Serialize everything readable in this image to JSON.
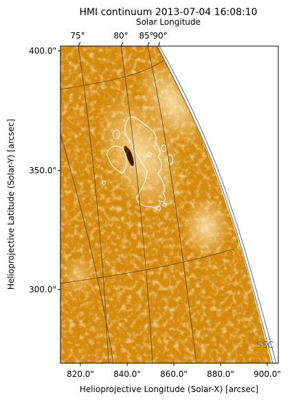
{
  "chart_data": {
    "type": "heatmap",
    "title": "HMI continuum 2013-07-04 16:08:10",
    "top_axis_label": "Solar Longitude",
    "top_ticks": [
      "75°",
      "80°",
      "85°",
      "90°"
    ],
    "xlabel": "Helioprojective Longitude (Solar-X) [arcsec]",
    "ylabel": "Helioprojective Latitude (Solar-Y) [arcsec]",
    "x_ticks": [
      "820.0\"",
      "840.0\"",
      "860.0\"",
      "880.0\"",
      "900.0\""
    ],
    "y_ticks": [
      "300.0\"",
      "350.0\"",
      "400.0\""
    ],
    "xlim": [
      810.5,
      903.5
    ],
    "ylim": [
      267,
      402
    ],
    "watermark": "SSC",
    "grid": true,
    "colormap": "orange-gold (hmimag continuum)",
    "colors": {
      "base": "#d48a0c",
      "bright": "#f7dc9c",
      "dark_core": "#3a1606",
      "limb_line": "#555555",
      "grid_line": "#3a2a10",
      "contour": "#ffffff"
    }
  }
}
